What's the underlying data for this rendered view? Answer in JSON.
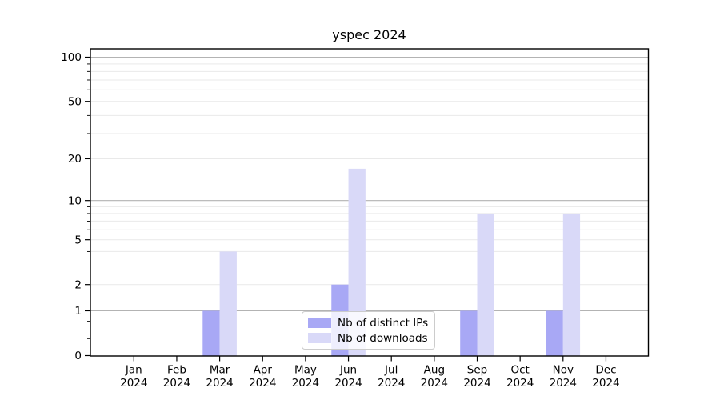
{
  "chart_data": {
    "type": "bar",
    "title": "yspec 2024",
    "categories": [
      "Jan",
      "Feb",
      "Mar",
      "Apr",
      "May",
      "Jun",
      "Jul",
      "Aug",
      "Sep",
      "Oct",
      "Nov",
      "Dec"
    ],
    "category_year": "2024",
    "series": [
      {
        "name": "Nb of distinct IPs",
        "color": "#a8a8f5",
        "values": [
          0,
          0,
          1,
          0,
          0,
          2,
          0,
          0,
          1,
          0,
          1,
          0
        ]
      },
      {
        "name": "Nb of downloads",
        "color": "#d9d9f8",
        "values": [
          0,
          0,
          4,
          0,
          0,
          17,
          0,
          0,
          8,
          0,
          8,
          0
        ]
      }
    ],
    "y_axis": {
      "scale": "log1p",
      "tick_labels": [
        0,
        1,
        2,
        5,
        10,
        20,
        50,
        100
      ],
      "major_gridlines": [
        1,
        10,
        100
      ],
      "minor_gridlines": [
        2,
        3,
        4,
        5,
        6,
        7,
        8,
        9,
        20,
        30,
        40,
        50,
        60,
        70,
        80,
        90
      ],
      "minor_ticks_no_grid": [
        0.3,
        0.7
      ],
      "range_top": 113
    },
    "legend_position": "lower center",
    "colors": {
      "major_grid": "#b3b3b3",
      "minor_grid": "#e9e9e9",
      "spine": "#000000",
      "text": "#000000"
    }
  }
}
